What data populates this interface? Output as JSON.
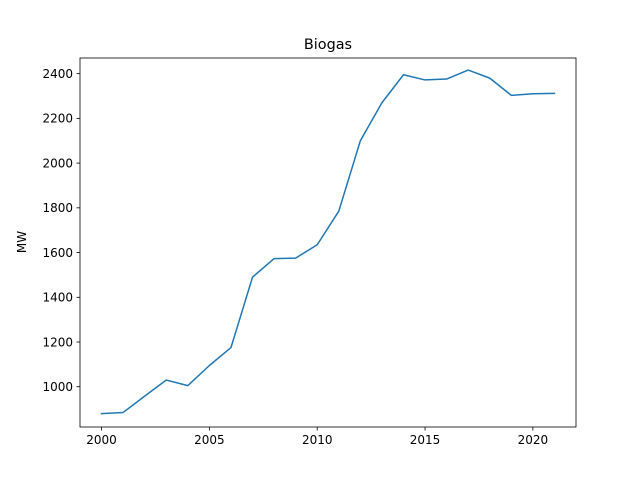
{
  "chart_data": {
    "type": "line",
    "title": "Biogas",
    "xlabel": "",
    "ylabel": "MW",
    "xlim": [
      1999,
      2022
    ],
    "ylim": [
      820,
      2470
    ],
    "xticks": [
      2000,
      2005,
      2010,
      2015,
      2020
    ],
    "yticks": [
      1000,
      1200,
      1400,
      1600,
      1800,
      2000,
      2200,
      2400
    ],
    "grid": false,
    "legend": "none",
    "series": [
      {
        "color": "#1f77b4",
        "x": [
          2000,
          2001,
          2002,
          2003,
          2004,
          2005,
          2006,
          2007,
          2008,
          2009,
          2010,
          2011,
          2012,
          2013,
          2014,
          2015,
          2016,
          2017,
          2018,
          2019,
          2020,
          2021
        ],
        "y": [
          880,
          885,
          958,
          1030,
          1005,
          1095,
          1175,
          1490,
          1573,
          1575,
          1635,
          1785,
          2100,
          2270,
          2395,
          2372,
          2376,
          2416,
          2380,
          2303,
          2310,
          2312
        ]
      }
    ]
  }
}
